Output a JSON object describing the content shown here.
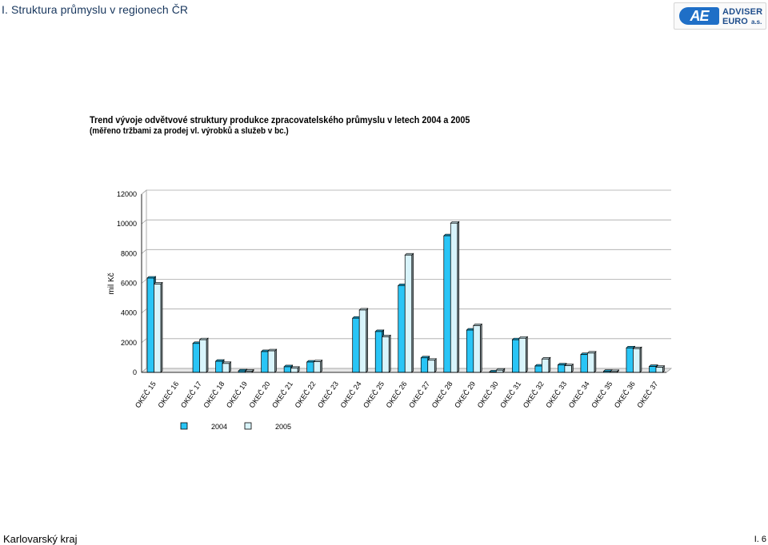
{
  "header": {
    "title": "I. Struktura průmyslu v regionech ČR"
  },
  "logo": {
    "mark": "AE",
    "line1": "ADVISER",
    "line2": "EURO",
    "line3": "a.s."
  },
  "chart_data": {
    "type": "bar",
    "title": "Trend vývoje odvětvové struktury produkce zpracovatelského průmyslu v letech 2004 a 2005",
    "subtitle": "(měřeno tržbami za prodej vl. výrobků a služeb v bc.)",
    "ylabel": "mil Kč",
    "xlabel": "",
    "ylim": [
      0,
      12000
    ],
    "yticks": [
      0,
      2000,
      4000,
      6000,
      8000,
      10000,
      12000
    ],
    "grid": true,
    "legend_position": "bottom",
    "categories": [
      "OKEČ 15",
      "OKEČ 16",
      "OKEČ 17",
      "OKEČ 18",
      "OKEČ 19",
      "OKEČ 20",
      "OKEČ 21",
      "OKEČ 22",
      "OKEČ 23",
      "OKEČ 24",
      "OKEČ 25",
      "OKEČ 26",
      "OKEČ 27",
      "OKEČ 28",
      "OKEČ 29",
      "OKEČ 30",
      "OKEČ 31",
      "OKEČ 32",
      "OKEČ 33",
      "OKEČ 34",
      "OKEČ 35",
      "OKEČ 36",
      "OKEČ 37"
    ],
    "series": [
      {
        "name": "2004",
        "color": "#29c5f6",
        "values": [
          6350,
          0,
          1950,
          750,
          100,
          1400,
          380,
          700,
          0,
          3650,
          2750,
          5850,
          980,
          9200,
          2850,
          30,
          2200,
          430,
          500,
          1200,
          70,
          1650,
          400
        ]
      },
      {
        "name": "2005",
        "color": "#d8f4fb",
        "values": [
          5950,
          0,
          2200,
          600,
          80,
          1450,
          280,
          720,
          0,
          4200,
          2400,
          7900,
          820,
          10050,
          3150,
          150,
          2300,
          900,
          450,
          1300,
          60,
          1600,
          340
        ]
      }
    ]
  },
  "footer": {
    "region": "Karlovarský kraj",
    "page": "I. 6"
  }
}
